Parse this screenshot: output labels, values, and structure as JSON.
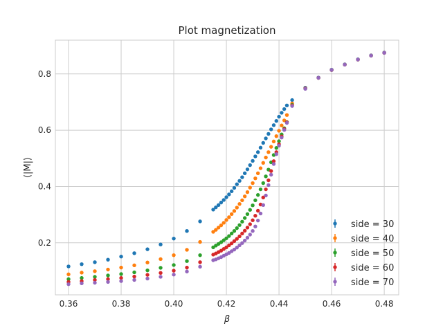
{
  "chart_data": {
    "type": "scatter",
    "title": "Plot magnetization",
    "xlabel": "β",
    "ylabel": "⟨|M|⟩",
    "xlim": [
      0.355,
      0.4855
    ],
    "ylim": [
      0.015,
      0.92
    ],
    "x_ticks": [
      0.36,
      0.38,
      0.4,
      0.42,
      0.44,
      0.46,
      0.48
    ],
    "x_tick_labels": [
      "0.36",
      "0.38",
      "0.40",
      "0.42",
      "0.44",
      "0.46",
      "0.48"
    ],
    "y_ticks": [
      0.2,
      0.4,
      0.6,
      0.8
    ],
    "y_tick_labels": [
      "0.2",
      "0.4",
      "0.6",
      "0.8"
    ],
    "grid": true,
    "error_bars": true,
    "legend_position": "bottom-right",
    "colors": [
      "#1f77b4",
      "#ff7f0e",
      "#2ca02c",
      "#d62728",
      "#9467bd"
    ],
    "series": [
      {
        "name": "side = 30",
        "color": "#1f77b4",
        "x": [
          0.36,
          0.365,
          0.37,
          0.375,
          0.38,
          0.385,
          0.39,
          0.395,
          0.4,
          0.405,
          0.41,
          0.415,
          0.416,
          0.417,
          0.418,
          0.419,
          0.42,
          0.421,
          0.422,
          0.423,
          0.424,
          0.425,
          0.426,
          0.427,
          0.428,
          0.429,
          0.43,
          0.431,
          0.432,
          0.433,
          0.434,
          0.435,
          0.436,
          0.437,
          0.438,
          0.439,
          0.44,
          0.441,
          0.442,
          0.443,
          0.445,
          0.45,
          0.455,
          0.46,
          0.465,
          0.47,
          0.475,
          0.48
        ],
        "y": [
          0.116,
          0.124,
          0.131,
          0.14,
          0.151,
          0.163,
          0.177,
          0.194,
          0.215,
          0.242,
          0.276,
          0.318,
          0.326,
          0.334,
          0.343,
          0.352,
          0.362,
          0.372,
          0.383,
          0.395,
          0.408,
          0.42,
          0.433,
          0.447,
          0.461,
          0.476,
          0.491,
          0.507,
          0.522,
          0.538,
          0.555,
          0.571,
          0.587,
          0.603,
          0.618,
          0.633,
          0.648,
          0.662,
          0.675,
          0.688,
          0.707,
          0.751,
          0.787,
          0.815,
          0.834,
          0.852,
          0.866,
          0.876
        ]
      },
      {
        "name": "side = 40",
        "color": "#ff7f0e",
        "x": [
          0.36,
          0.365,
          0.37,
          0.375,
          0.38,
          0.385,
          0.39,
          0.395,
          0.4,
          0.405,
          0.41,
          0.415,
          0.416,
          0.417,
          0.418,
          0.419,
          0.42,
          0.421,
          0.422,
          0.423,
          0.424,
          0.425,
          0.426,
          0.427,
          0.428,
          0.429,
          0.43,
          0.431,
          0.432,
          0.433,
          0.434,
          0.435,
          0.436,
          0.437,
          0.438,
          0.439,
          0.44,
          0.441,
          0.442,
          0.443,
          0.445,
          0.45,
          0.455,
          0.46,
          0.465,
          0.47,
          0.475,
          0.48
        ],
        "y": [
          0.088,
          0.094,
          0.099,
          0.105,
          0.112,
          0.12,
          0.13,
          0.142,
          0.156,
          0.175,
          0.203,
          0.239,
          0.246,
          0.254,
          0.262,
          0.271,
          0.281,
          0.291,
          0.302,
          0.313,
          0.325,
          0.338,
          0.351,
          0.365,
          0.38,
          0.396,
          0.412,
          0.429,
          0.447,
          0.465,
          0.484,
          0.503,
          0.522,
          0.541,
          0.56,
          0.579,
          0.598,
          0.617,
          0.635,
          0.654,
          0.695,
          0.749,
          0.786,
          0.814,
          0.833,
          0.851,
          0.865,
          0.875
        ]
      },
      {
        "name": "side = 50",
        "color": "#2ca02c",
        "x": [
          0.36,
          0.365,
          0.37,
          0.375,
          0.38,
          0.385,
          0.39,
          0.395,
          0.4,
          0.405,
          0.41,
          0.415,
          0.416,
          0.417,
          0.418,
          0.419,
          0.42,
          0.421,
          0.422,
          0.423,
          0.424,
          0.425,
          0.426,
          0.427,
          0.428,
          0.429,
          0.43,
          0.431,
          0.432,
          0.433,
          0.434,
          0.435,
          0.436,
          0.437,
          0.438,
          0.439,
          0.44,
          0.441,
          0.442,
          0.443,
          0.445,
          0.45,
          0.455,
          0.46,
          0.465,
          0.47,
          0.475,
          0.48
        ],
        "y": [
          0.071,
          0.075,
          0.079,
          0.084,
          0.089,
          0.095,
          0.102,
          0.111,
          0.121,
          0.135,
          0.156,
          0.184,
          0.19,
          0.196,
          0.202,
          0.209,
          0.216,
          0.224,
          0.233,
          0.242,
          0.252,
          0.263,
          0.275,
          0.288,
          0.302,
          0.317,
          0.333,
          0.351,
          0.37,
          0.39,
          0.412,
          0.436,
          0.46,
          0.486,
          0.512,
          0.537,
          0.561,
          0.585,
          0.607,
          0.629,
          0.69,
          0.748,
          0.786,
          0.814,
          0.833,
          0.851,
          0.865,
          0.875
        ]
      },
      {
        "name": "side = 60",
        "color": "#d62728",
        "x": [
          0.36,
          0.365,
          0.37,
          0.375,
          0.38,
          0.385,
          0.39,
          0.395,
          0.4,
          0.405,
          0.41,
          0.415,
          0.416,
          0.417,
          0.418,
          0.419,
          0.42,
          0.421,
          0.422,
          0.423,
          0.424,
          0.425,
          0.426,
          0.427,
          0.428,
          0.429,
          0.43,
          0.431,
          0.432,
          0.433,
          0.434,
          0.435,
          0.436,
          0.437,
          0.438,
          0.439,
          0.44,
          0.441,
          0.442,
          0.443,
          0.445,
          0.45,
          0.455,
          0.46,
          0.465,
          0.47,
          0.475,
          0.48
        ],
        "y": [
          0.061,
          0.064,
          0.068,
          0.071,
          0.075,
          0.08,
          0.086,
          0.093,
          0.101,
          0.112,
          0.131,
          0.158,
          0.162,
          0.167,
          0.172,
          0.178,
          0.184,
          0.191,
          0.198,
          0.206,
          0.214,
          0.223,
          0.233,
          0.243,
          0.254,
          0.266,
          0.28,
          0.296,
          0.314,
          0.336,
          0.361,
          0.39,
          0.422,
          0.455,
          0.49,
          0.522,
          0.55,
          0.578,
          0.604,
          0.628,
          0.688,
          0.748,
          0.786,
          0.814,
          0.833,
          0.851,
          0.865,
          0.875
        ]
      },
      {
        "name": "side = 70",
        "color": "#9467bd",
        "x": [
          0.36,
          0.365,
          0.37,
          0.375,
          0.38,
          0.385,
          0.39,
          0.395,
          0.4,
          0.405,
          0.41,
          0.415,
          0.416,
          0.417,
          0.418,
          0.419,
          0.42,
          0.421,
          0.422,
          0.423,
          0.424,
          0.425,
          0.426,
          0.427,
          0.428,
          0.429,
          0.43,
          0.431,
          0.432,
          0.433,
          0.434,
          0.435,
          0.436,
          0.437,
          0.438,
          0.439,
          0.44,
          0.441,
          0.442,
          0.443,
          0.445,
          0.45,
          0.455,
          0.46,
          0.465,
          0.47,
          0.475,
          0.48
        ],
        "y": [
          0.053,
          0.056,
          0.058,
          0.061,
          0.064,
          0.068,
          0.073,
          0.079,
          0.087,
          0.098,
          0.115,
          0.138,
          0.141,
          0.145,
          0.149,
          0.154,
          0.159,
          0.164,
          0.17,
          0.176,
          0.183,
          0.191,
          0.199,
          0.208,
          0.218,
          0.229,
          0.242,
          0.258,
          0.279,
          0.304,
          0.334,
          0.368,
          0.405,
          0.442,
          0.48,
          0.515,
          0.545,
          0.574,
          0.601,
          0.626,
          0.686,
          0.747,
          0.786,
          0.814,
          0.833,
          0.851,
          0.865,
          0.875
        ]
      }
    ]
  }
}
